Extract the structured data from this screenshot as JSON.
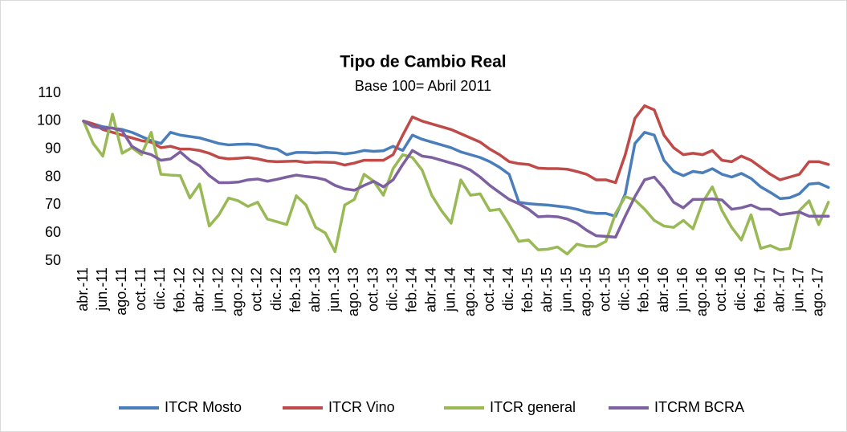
{
  "chart_data": {
    "type": "line",
    "title": "Tipo de Cambio Real",
    "subtitle": "Base 100= Abril 2011",
    "categories": [
      "abr.-11",
      null,
      "jun.-11",
      null,
      "ago.-11",
      null,
      "oct.-11",
      null,
      "dic.-11",
      null,
      "feb.-12",
      null,
      "abr.-12",
      null,
      "jun.-12",
      null,
      "ago.-12",
      null,
      "oct.-12",
      null,
      "dic.-12",
      null,
      "feb.-13",
      null,
      "abr.-13",
      null,
      "jun.-13",
      null,
      "ago.-13",
      null,
      "oct.-13",
      null,
      "dic.-13",
      null,
      "feb.-14",
      null,
      "abr.-14",
      null,
      "jun.-14",
      null,
      "ago.-14",
      null,
      "oct.-14",
      null,
      "dic.-14",
      null,
      "feb.-15",
      null,
      "abr.-15",
      null,
      "jun.-15",
      null,
      "ago.-15",
      null,
      "oct.-15",
      null,
      "dic.-15",
      null,
      "feb.-16",
      null,
      "abr.-16",
      null,
      "jun.-16",
      null,
      "ago.-16",
      null,
      "oct.-16",
      null,
      "dic.-16",
      null,
      "feb.-17",
      null,
      "abr.-17",
      null,
      "jun.-17",
      null,
      "ago.-17",
      null
    ],
    "series": [
      {
        "name": "ITCR Mosto",
        "color": "#4a7ebb",
        "values": [
          100,
          99,
          98,
          97.5,
          97,
          96,
          94.5,
          93,
          92,
          96,
          95,
          94.5,
          94,
          93,
          92,
          91.5,
          91.7,
          91.8,
          91.5,
          90.5,
          90,
          88,
          88.8,
          88.8,
          88.6,
          88.8,
          88.7,
          88.3,
          88.7,
          89.5,
          89.2,
          89.4,
          91,
          89.5,
          95,
          93.5,
          92.5,
          91.5,
          90.5,
          89,
          88,
          87,
          85.5,
          83.5,
          81,
          71,
          70.5,
          70.2,
          70,
          69.6,
          69.2,
          68.5,
          67.5,
          67,
          67,
          66,
          74,
          92,
          96,
          95,
          86,
          82,
          80.5,
          82,
          81.5,
          83,
          81,
          80,
          81.3,
          79.5,
          76.5,
          74.5,
          72.3,
          72.6,
          74,
          77.5,
          77.8,
          76.3
        ]
      },
      {
        "name": "ITCR Vino",
        "color": "#be4b48",
        "values": [
          100,
          99,
          97,
          96,
          95,
          94,
          93,
          92.5,
          90.5,
          91,
          90,
          90,
          89.5,
          88.5,
          87,
          86.5,
          86.7,
          87,
          86.5,
          85.7,
          85.5,
          85.6,
          85.7,
          85.2,
          85.4,
          85.3,
          85.2,
          84.3,
          85,
          86,
          86,
          86,
          88,
          95,
          101.5,
          100,
          99,
          98,
          97,
          95.5,
          94,
          92.5,
          90,
          88,
          85.5,
          84.8,
          84.5,
          83.2,
          83,
          83,
          82.8,
          82,
          81,
          79,
          79,
          78,
          88,
          101,
          105.5,
          104,
          95,
          90.5,
          88,
          88.5,
          88,
          89.5,
          86,
          85.5,
          87.5,
          86,
          83.5,
          81,
          79,
          80,
          81,
          85.5,
          85.5,
          84.5
        ]
      },
      {
        "name": "ITCR general",
        "color": "#98b954",
        "values": [
          100,
          92,
          87.5,
          102.5,
          88.5,
          90.5,
          88,
          96,
          81,
          80.7,
          80.5,
          72.5,
          77.5,
          62.5,
          66.5,
          72.5,
          71.5,
          69.5,
          71,
          65,
          64,
          63,
          73.3,
          70,
          62,
          60,
          53.3,
          70,
          72,
          81,
          78.5,
          73.5,
          83,
          88,
          87,
          82.5,
          73.5,
          68,
          63.5,
          79,
          73.5,
          74,
          68,
          68.5,
          63,
          57,
          57.5,
          54,
          54.2,
          55,
          52.5,
          56,
          55.2,
          55.2,
          57,
          67,
          73,
          71.8,
          68.5,
          64.5,
          62.5,
          62,
          64.5,
          61.5,
          71,
          76.5,
          68,
          62,
          57.5,
          66.5,
          54.5,
          55.5,
          54,
          54.5,
          68,
          71.5,
          63,
          71
        ]
      },
      {
        "name": "ITCRM BCRA",
        "color": "#7d60a0",
        "values": [
          100,
          98,
          97.5,
          97.5,
          96.5,
          91,
          89,
          88,
          86,
          86.5,
          89,
          86,
          84,
          80.5,
          78,
          78,
          78.2,
          79,
          79.3,
          78.5,
          79.2,
          80,
          80.7,
          80.2,
          79.8,
          79,
          77,
          75.8,
          75.3,
          77,
          78.5,
          76.5,
          79,
          84.5,
          89.5,
          87.5,
          87,
          86,
          85,
          84,
          82.5,
          80,
          77,
          74.5,
          72,
          70.5,
          68.5,
          65.8,
          66,
          65.8,
          65,
          63.5,
          61,
          59,
          58.8,
          58.5,
          66,
          73,
          79,
          80,
          76,
          71,
          69,
          72,
          72,
          72.2,
          71.8,
          68.5,
          69,
          70,
          68.5,
          68.5,
          66.5,
          67,
          67.5,
          66,
          66,
          66
        ]
      }
    ],
    "ylim": [
      50,
      110
    ],
    "yticks": [
      50,
      60,
      70,
      80,
      90,
      100,
      110
    ],
    "grid": false,
    "legend": "bottom"
  }
}
